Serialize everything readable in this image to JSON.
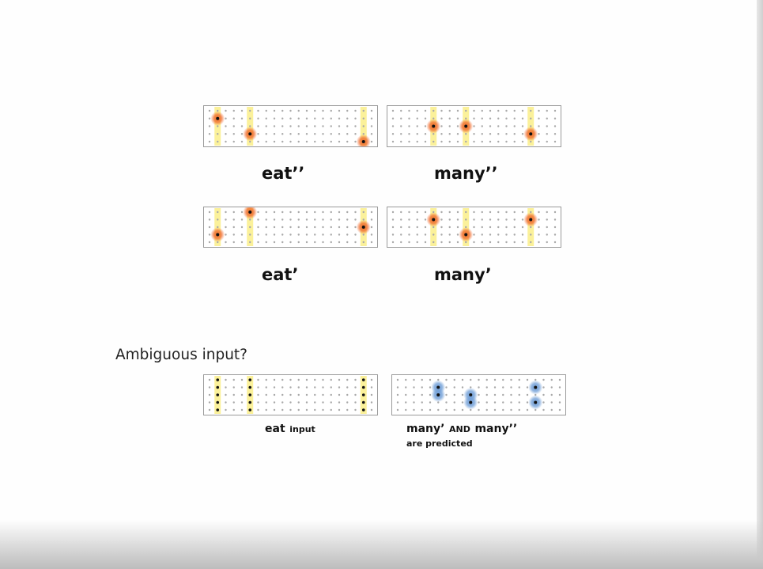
{
  "colors": {
    "column_highlight": "#fbf19a",
    "active_cell_glow": "#f06a2a",
    "predicted_cell_glow": "#6b9bd6",
    "dot": "#a9a9a9",
    "cell_core": "#111111"
  },
  "grid_shape": {
    "columns": 21,
    "rows": 5
  },
  "panels": [
    {
      "id": "eat-double-prime",
      "label": "eat’’",
      "highlight_columns": [
        1,
        5,
        19
      ],
      "active_cells": [
        [
          1,
          1
        ],
        [
          5,
          3
        ],
        [
          19,
          4
        ]
      ],
      "predicted_cells": []
    },
    {
      "id": "many-double-prime",
      "label": "many’’",
      "highlight_columns": [
        5,
        9,
        17
      ],
      "active_cells": [
        [
          5,
          2
        ],
        [
          9,
          2
        ],
        [
          17,
          3
        ]
      ],
      "predicted_cells": []
    },
    {
      "id": "eat-prime",
      "label": "eat’",
      "highlight_columns": [
        1,
        5,
        19
      ],
      "active_cells": [
        [
          1,
          3
        ],
        [
          5,
          0
        ],
        [
          19,
          2
        ]
      ],
      "predicted_cells": []
    },
    {
      "id": "many-prime",
      "label": "many’",
      "highlight_columns": [
        5,
        9,
        17
      ],
      "active_cells": [
        [
          5,
          1
        ],
        [
          9,
          3
        ],
        [
          17,
          1
        ]
      ],
      "predicted_cells": []
    },
    {
      "id": "eat-input",
      "label": "eat",
      "sublabel": "input",
      "highlight_columns": [
        1,
        5,
        19
      ],
      "active_cells": [
        [
          1,
          0
        ],
        [
          1,
          1
        ],
        [
          1,
          2
        ],
        [
          1,
          3
        ],
        [
          1,
          4
        ],
        [
          5,
          0
        ],
        [
          5,
          1
        ],
        [
          5,
          2
        ],
        [
          5,
          3
        ],
        [
          5,
          4
        ],
        [
          19,
          0
        ],
        [
          19,
          1
        ],
        [
          19,
          2
        ],
        [
          19,
          3
        ],
        [
          19,
          4
        ]
      ],
      "predicted_cells": []
    },
    {
      "id": "many-predicted",
      "label": "many’",
      "connector": "AND",
      "label2": "many’’",
      "sublabel": "are predicted",
      "highlight_columns": [],
      "active_cells": [],
      "predicted_cells": [
        [
          5,
          1
        ],
        [
          5,
          2
        ],
        [
          9,
          2
        ],
        [
          9,
          3
        ],
        [
          17,
          1
        ],
        [
          17,
          3
        ]
      ]
    }
  ],
  "question": "Ambiguous input?"
}
